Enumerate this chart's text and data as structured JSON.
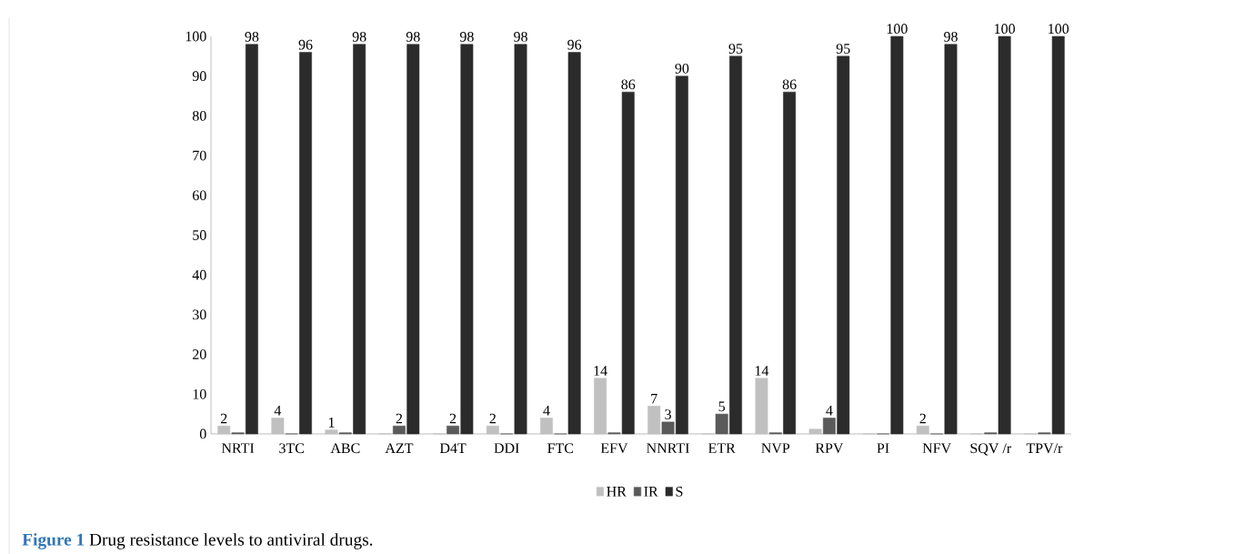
{
  "chart_data": {
    "type": "bar",
    "categories": [
      "NRTI",
      "3TC",
      "ABC",
      "AZT",
      "D4T",
      "DDI",
      "FTC",
      "EFV",
      "NNRTI",
      "ETR",
      "NVP",
      "RPV",
      "PI",
      "NFV",
      "SQV /r",
      "TPV/r"
    ],
    "series": [
      {
        "name": "HR",
        "color": "#c0c0c0",
        "values": [
          2,
          4,
          1,
          0,
          0,
          2,
          4,
          14,
          7,
          0,
          14,
          1.2,
          0,
          2,
          0,
          0
        ],
        "value_labels": [
          "2",
          "4",
          "1",
          null,
          null,
          "2",
          "4",
          "14",
          "7",
          null,
          "14",
          null,
          null,
          "2",
          null,
          null
        ]
      },
      {
        "name": "IR",
        "color": "#5a5a5a",
        "values": [
          0.3,
          0,
          0.3,
          2,
          2,
          0,
          0,
          0.3,
          3,
          5,
          0.3,
          4,
          0,
          0,
          0.3,
          0.3
        ],
        "value_labels": [
          null,
          null,
          null,
          "2",
          "2",
          null,
          null,
          null,
          "3",
          "5",
          null,
          "4",
          null,
          null,
          null,
          null
        ]
      },
      {
        "name": "S",
        "color": "#2b2b2b",
        "values": [
          98,
          96,
          98,
          98,
          98,
          98,
          96,
          86,
          90,
          95,
          86,
          95,
          100,
          98,
          100,
          100
        ],
        "value_labels": [
          "98",
          "96",
          "98",
          "98",
          "98",
          "98",
          "96",
          "86",
          "90",
          "95",
          "86",
          "95",
          "100",
          "98",
          "100",
          "100"
        ]
      }
    ],
    "ylim": [
      0,
      100
    ],
    "yticks": [
      0,
      10,
      20,
      30,
      40,
      50,
      60,
      70,
      80,
      90,
      100
    ],
    "grid": false,
    "legend": "bottom",
    "annotations": [
      "Figure 1",
      "Drug resistance levels to antiviral drugs."
    ]
  }
}
